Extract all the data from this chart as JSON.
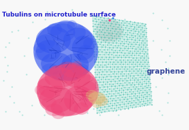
{
  "title": "Tubulins on microtubule surface",
  "graphene_label": "graphene",
  "bg_color": "#f8f8f8",
  "title_color": "#2222cc",
  "graphene_label_color": "#334499",
  "title_fontsize": 6.5,
  "graphene_label_fontsize": 7.5,
  "title_bold": true,
  "graphene_label_bold": true,
  "blue_protein_color": "#3355ee",
  "blue_protein_detail": "#1133bb",
  "pink_protein_color": "#ee4477",
  "pink_protein_detail": "#cc2255",
  "gray_protein_color": "#cccccc",
  "graphene_dot_color": "#44bbaa",
  "graphene_dot_color2": "#66ddcc",
  "graphene_bg_color": "#88ddcc",
  "scatter_dot_color": "#55ccbb",
  "yellow_color": "#ddbb77",
  "border_color": "#aaaaaa"
}
